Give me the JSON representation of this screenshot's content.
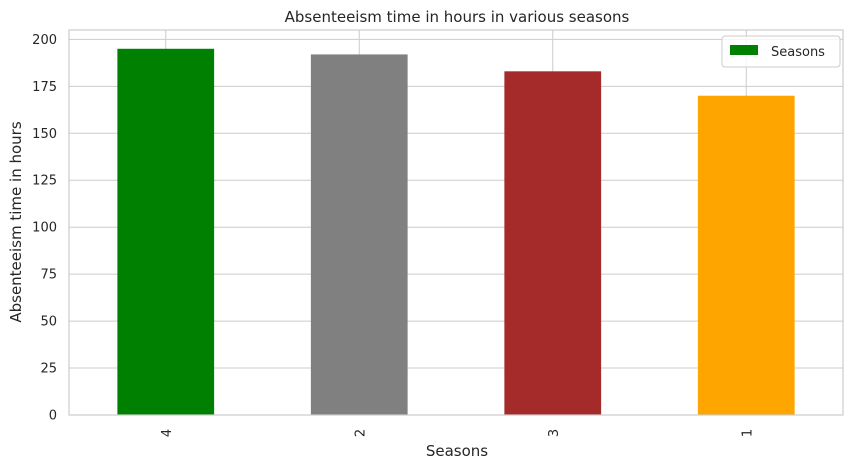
{
  "chart_data": {
    "type": "bar",
    "title": "Absenteeism time in hours in various seasons",
    "xlabel": "Seasons",
    "ylabel": "Absenteeism time in hours",
    "categories": [
      "4",
      "2",
      "3",
      "1"
    ],
    "values": [
      195,
      192,
      183,
      170
    ],
    "colors": [
      "#008000",
      "#808080",
      "#a52a2a",
      "#ffa500"
    ],
    "ylim": [
      0,
      205
    ],
    "yticks": [
      0,
      25,
      50,
      75,
      100,
      125,
      150,
      175,
      200
    ],
    "grid": true,
    "legend": {
      "label": "Seasons",
      "color": "#008000",
      "placement": "upper right"
    }
  }
}
